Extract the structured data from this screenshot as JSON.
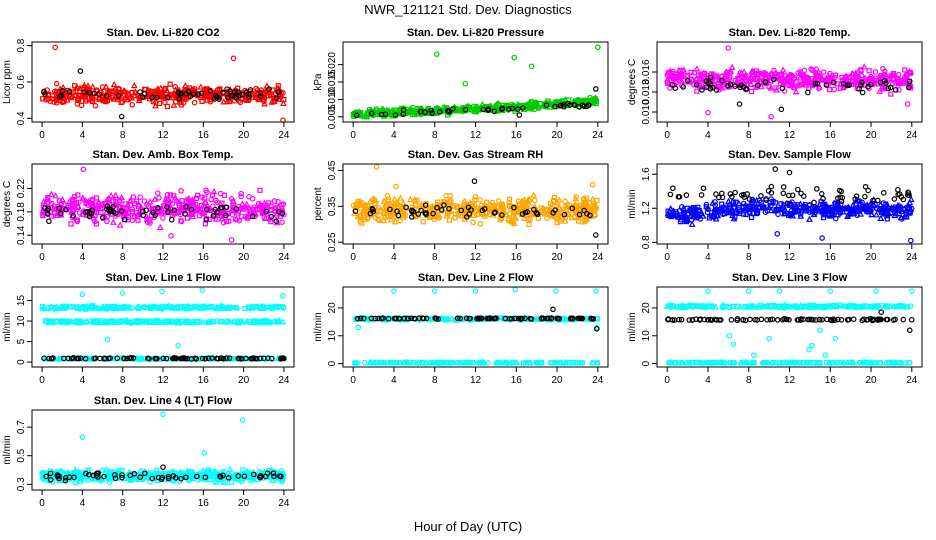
{
  "figure": {
    "title": "NWR_121121  Std. Dev. Diagnostics",
    "xlabel": "Hour of Day (UTC)"
  },
  "chart_data": [
    {
      "type": "scatter",
      "id": "co2",
      "title": "Stan. Dev. Li-820 CO2",
      "ylabel": "Licor ppm",
      "xlim": [
        -1,
        25
      ],
      "ylim": [
        0.38,
        0.82
      ],
      "xticks": [
        0,
        4,
        8,
        12,
        16,
        20,
        24
      ],
      "yticks": [
        "0.4",
        "0.6",
        "0.8"
      ],
      "series": [
        {
          "name": "all",
          "color": "#ff0000",
          "center": 0.53,
          "spread": 0.14,
          "n": 420,
          "shape": "mixed",
          "outliers": [
            [
              1.3,
              0.79
            ],
            [
              23.9,
              0.39
            ],
            [
              19.0,
              0.73
            ]
          ]
        },
        {
          "name": "hourly",
          "color": "#000000",
          "center": 0.53,
          "spread": 0.09,
          "n": 55,
          "shape": "circle",
          "outliers": [
            [
              3.8,
              0.66
            ],
            [
              7.9,
              0.41
            ]
          ]
        }
      ]
    },
    {
      "type": "scatter",
      "id": "pressure",
      "title": "Stan. Dev. Li-820 Pressure",
      "ylabel": "kPa",
      "xlim": [
        -1,
        25
      ],
      "ylim": [
        0.0035,
        0.0265
      ],
      "xticks": [
        0,
        4,
        8,
        12,
        16,
        20,
        24
      ],
      "yticks": [
        "0.005",
        "0.010",
        "0.015",
        "0.020"
      ],
      "series": [
        {
          "name": "all",
          "color": "#00cc00",
          "center": 0.0068,
          "spread": 0.003,
          "n": 420,
          "shape": "mixed",
          "trend": [
            [
              0,
              0.0058
            ],
            [
              12,
              0.0072
            ],
            [
              24,
              0.0095
            ]
          ],
          "outliers": [
            [
              8.2,
              0.023
            ],
            [
              15.8,
              0.022
            ],
            [
              17.5,
              0.0195
            ],
            [
              24.0,
              0.025
            ],
            [
              11.0,
              0.0145
            ]
          ]
        },
        {
          "name": "hourly",
          "color": "#000000",
          "center": 0.0065,
          "spread": 0.0018,
          "n": 45,
          "shape": "circle",
          "trend": [
            [
              0,
              0.0055
            ],
            [
              24,
              0.0085
            ]
          ],
          "outliers": [
            [
              23.8,
              0.013
            ],
            [
              16.3,
              0.0055
            ]
          ]
        }
      ]
    },
    {
      "type": "scatter",
      "id": "temp",
      "title": "Stan. Dev. Li-820 Temp.",
      "ylabel": "degrees C",
      "xlim": [
        -1,
        25
      ],
      "ylim": [
        0.0085,
        0.0205
      ],
      "xticks": [
        0,
        4,
        8,
        12,
        16,
        20,
        24
      ],
      "yticks": [
        "0.010",
        "0.013",
        "0.016"
      ],
      "series": [
        {
          "name": "all",
          "color": "#ff00ff",
          "center": 0.0148,
          "spread": 0.0046,
          "n": 420,
          "shape": "mixed",
          "outliers": [
            [
              10.2,
              0.0093
            ],
            [
              4.0,
              0.0099
            ],
            [
              6.0,
              0.0196
            ],
            [
              23.6,
              0.0112
            ]
          ]
        },
        {
          "name": "hourly",
          "color": "#000000",
          "center": 0.014,
          "spread": 0.0028,
          "n": 50,
          "shape": "circle",
          "outliers": [
            [
              11.2,
              0.0104
            ],
            [
              7.1,
              0.0112
            ]
          ]
        }
      ]
    },
    {
      "type": "scatter",
      "id": "ambbox",
      "title": "Stan. Dev. Amb. Box Temp.",
      "ylabel": "degrees C",
      "xlim": [
        -1,
        25
      ],
      "ylim": [
        0.125,
        0.262
      ],
      "xticks": [
        0,
        4,
        8,
        12,
        16,
        20,
        24
      ],
      "yticks": [
        "0.14",
        "0.18",
        "0.22"
      ],
      "series": [
        {
          "name": "all",
          "color": "#ff00ff",
          "center": 0.185,
          "spread": 0.07,
          "n": 420,
          "shape": "mixed",
          "outliers": [
            [
              4.1,
              0.253
            ],
            [
              12.8,
              0.139
            ],
            [
              18.8,
              0.132
            ]
          ]
        },
        {
          "name": "hourly",
          "color": "#000000",
          "center": 0.18,
          "spread": 0.04,
          "n": 55,
          "shape": "circle",
          "outliers": []
        }
      ]
    },
    {
      "type": "scatter",
      "id": "rh",
      "title": "Stan. Dev. Gas Stream RH",
      "ylabel": "percent",
      "xlim": [
        -1,
        25
      ],
      "ylim": [
        0.245,
        0.468
      ],
      "xticks": [
        0,
        4,
        8,
        12,
        16,
        20,
        24
      ],
      "yticks": [
        "0.25",
        "0.35",
        "0.45"
      ],
      "series": [
        {
          "name": "all",
          "color": "#ffa500",
          "center": 0.34,
          "spread": 0.1,
          "n": 450,
          "shape": "mixed",
          "outliers": [
            [
              2.3,
              0.46
            ],
            [
              4.2,
              0.405
            ],
            [
              23.5,
              0.41
            ]
          ]
        },
        {
          "name": "hourly",
          "color": "#000000",
          "center": 0.335,
          "spread": 0.055,
          "n": 50,
          "shape": "circle",
          "outliers": [
            [
              11.9,
              0.42
            ],
            [
              23.8,
              0.27
            ]
          ]
        }
      ]
    },
    {
      "type": "scatter",
      "id": "sample",
      "title": "Stan. Dev. Sample Flow",
      "ylabel": "ml/min",
      "xlim": [
        -1,
        25
      ],
      "ylim": [
        0.78,
        1.72
      ],
      "xticks": [
        0,
        4,
        8,
        12,
        16,
        20,
        24
      ],
      "yticks": [
        "0.8",
        "1.2",
        "1.6"
      ],
      "series": [
        {
          "name": "all",
          "color": "#0000ff",
          "center": 1.15,
          "spread": 0.28,
          "n": 440,
          "shape": "mixed",
          "trend": [
            [
              0,
              1.1
            ],
            [
              9,
              1.22
            ],
            [
              14,
              1.18
            ],
            [
              24,
              1.18
            ]
          ],
          "outliers": [
            [
              23.9,
              0.82
            ],
            [
              15.2,
              0.85
            ],
            [
              10.8,
              0.9
            ]
          ]
        },
        {
          "name": "hourly",
          "color": "#000000",
          "center": 1.35,
          "spread": 0.32,
          "n": 60,
          "shape": "circle",
          "outliers": [
            [
              10.6,
              1.66
            ],
            [
              12.0,
              1.62
            ]
          ]
        }
      ]
    },
    {
      "type": "scatter",
      "id": "line1",
      "title": "Stan. Dev. Line 1 Flow",
      "ylabel": "ml/min",
      "xlim": [
        -1,
        25
      ],
      "ylim": [
        -1.2,
        18.3
      ],
      "xticks": [
        0,
        4,
        8,
        12,
        16,
        20,
        24
      ],
      "yticks": [
        "0",
        "5",
        "10",
        "15"
      ],
      "series": [
        {
          "name": "band-high",
          "color": "#00ffff",
          "center": 13.3,
          "spread": 1.0,
          "n": 220,
          "shape": "mixed",
          "outliers": [
            [
              4.0,
              16.5
            ],
            [
              11.9,
              17.2
            ],
            [
              15.9,
              17.5
            ],
            [
              23.9,
              16.2
            ],
            [
              8.0,
              16.8
            ],
            [
              6.5,
              5.5
            ],
            [
              13.5,
              4.0
            ]
          ]
        },
        {
          "name": "band-mid",
          "color": "#00ffff",
          "center": 9.8,
          "spread": 0.8,
          "n": 220,
          "shape": "mixed",
          "outliers": []
        },
        {
          "name": "band-low",
          "color": "#00ffff",
          "center": 0.8,
          "spread": 0.35,
          "n": 140,
          "shape": "mixed",
          "outliers": []
        },
        {
          "name": "hourly",
          "color": "#000000",
          "center": 0.9,
          "spread": 0.4,
          "n": 85,
          "shape": "circle",
          "outliers": []
        }
      ]
    },
    {
      "type": "scatter",
      "id": "line2",
      "title": "Stan. Dev. Line 2 Flow",
      "ylabel": "ml/min",
      "xlim": [
        -1,
        25
      ],
      "ylim": [
        -1.2,
        27.5
      ],
      "xticks": [
        0,
        4,
        8,
        12,
        16,
        20,
        24
      ],
      "yticks": [
        "0",
        "10",
        "20"
      ],
      "series": [
        {
          "name": "band-high",
          "color": "#00ffff",
          "center": 16.0,
          "spread": 1.2,
          "n": 170,
          "shape": "mixed",
          "outliers": [
            [
              4.0,
              26.0
            ],
            [
              8.0,
              26.0
            ],
            [
              12.0,
              26.0
            ],
            [
              15.9,
              26.6
            ],
            [
              19.9,
              26.0
            ],
            [
              23.8,
              26.0
            ],
            [
              0.5,
              13.0
            ],
            [
              23.9,
              13.0
            ]
          ]
        },
        {
          "name": "band-low",
          "color": "#00ffff",
          "center": 0.3,
          "spread": 0.3,
          "n": 160,
          "shape": "mixed",
          "outliers": []
        },
        {
          "name": "hourly",
          "color": "#000000",
          "center": 16.2,
          "spread": 0.5,
          "n": 90,
          "shape": "circle",
          "outliers": [
            [
              19.6,
              19.5
            ],
            [
              23.9,
              12.5
            ]
          ]
        }
      ]
    },
    {
      "type": "scatter",
      "id": "line3",
      "title": "Stan. Dev. Line 3 Flow",
      "ylabel": "ml/min",
      "xlim": [
        -1,
        25
      ],
      "ylim": [
        -1.2,
        27.5
      ],
      "xticks": [
        0,
        4,
        8,
        12,
        16,
        20,
        24
      ],
      "yticks": [
        "0",
        "10",
        "20"
      ],
      "series": [
        {
          "name": "band-high",
          "color": "#00ffff",
          "center": 20.5,
          "spread": 1.2,
          "n": 200,
          "shape": "mixed",
          "outliers": [
            [
              4.0,
              26.0
            ],
            [
              8.0,
              26.0
            ],
            [
              11.0,
              26.0
            ],
            [
              16.0,
              26.0
            ],
            [
              20.5,
              26.0
            ],
            [
              24.0,
              26.0
            ],
            [
              6.1,
              10.0
            ],
            [
              6.5,
              7.0
            ],
            [
              8.5,
              3.0
            ],
            [
              10.0,
              9.0
            ],
            [
              13.9,
              5.0
            ],
            [
              14.2,
              6.5
            ],
            [
              15.0,
              12.0
            ],
            [
              15.5,
              3.0
            ],
            [
              16.5,
              9.0
            ]
          ]
        },
        {
          "name": "band-low",
          "color": "#00ffff",
          "center": 0.3,
          "spread": 0.3,
          "n": 160,
          "shape": "mixed",
          "outliers": []
        },
        {
          "name": "hourly",
          "color": "#000000",
          "center": 15.8,
          "spread": 0.8,
          "n": 90,
          "shape": "circle",
          "outliers": [
            [
              23.8,
              12.0
            ],
            [
              21.0,
              18.5
            ]
          ]
        }
      ]
    },
    {
      "type": "scatter",
      "id": "line4",
      "title": "Stan. Dev. Line 4 (LT) Flow",
      "ylabel": "ml/min",
      "xlim": [
        -1,
        25
      ],
      "ylim": [
        0.26,
        0.82
      ],
      "xticks": [
        0,
        4,
        8,
        12,
        16,
        20,
        24
      ],
      "yticks": [
        "0.3",
        "0.5",
        "0.7"
      ],
      "series": [
        {
          "name": "all",
          "color": "#00ffff",
          "center": 0.36,
          "spread": 0.11,
          "n": 430,
          "shape": "mixed",
          "outliers": [
            [
              4.0,
              0.63
            ],
            [
              12.0,
              0.79
            ],
            [
              16.1,
              0.52
            ],
            [
              19.9,
              0.75
            ],
            [
              23.8,
              0.32
            ]
          ]
        },
        {
          "name": "hourly",
          "color": "#000000",
          "center": 0.355,
          "spread": 0.07,
          "n": 55,
          "shape": "circle",
          "outliers": [
            [
              12.0,
              0.42
            ]
          ]
        }
      ]
    }
  ]
}
